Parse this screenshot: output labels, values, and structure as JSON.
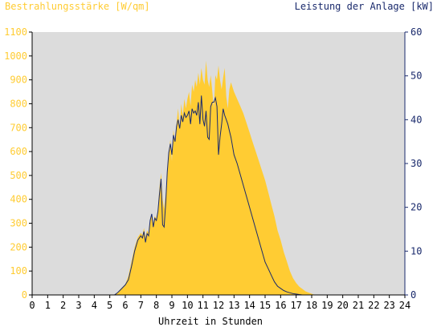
{
  "chart_data": {
    "type": "area",
    "left_axis_title": "Bestrahlungsstärke [W/qm]",
    "right_axis_title": "Leistung der Anlage [kW]",
    "xlabel": "Uhrzeit in Stunden",
    "xlim": [
      0,
      24
    ],
    "x_ticks": [
      "0",
      "1",
      "2",
      "3",
      "4",
      "5",
      "6",
      "7",
      "8",
      "9",
      "10",
      "11",
      "12",
      "13",
      "14",
      "15",
      "16",
      "17",
      "18",
      "19",
      "20",
      "21",
      "22",
      "23",
      "24"
    ],
    "y_left_lim": [
      0,
      1100
    ],
    "y_left_ticks": [
      "0",
      "100",
      "200",
      "300",
      "400",
      "500",
      "600",
      "700",
      "800",
      "900",
      "1000",
      "1100"
    ],
    "y_right_lim": [
      0,
      60
    ],
    "y_right_ticks": [
      "0",
      "10",
      "20",
      "30",
      "40",
      "50",
      "60"
    ],
    "grid": false,
    "colors": {
      "plot_bg": "#dcdcdc",
      "irradiance": "#ffcc33",
      "power": "#1a2a6c",
      "left_axis_text": "#ffcc33",
      "right_axis_text": "#1a2a6c"
    },
    "series": [
      {
        "axis": "left",
        "style": "area",
        "x": [
          0,
          5.3,
          5.5,
          5.7,
          6.0,
          6.2,
          6.4,
          6.6,
          6.8,
          7.0,
          7.1,
          7.2,
          7.3,
          7.4,
          7.5,
          7.6,
          7.7,
          7.8,
          7.9,
          8.0,
          8.1,
          8.2,
          8.3,
          8.4,
          8.5,
          8.6,
          8.7,
          8.8,
          8.9,
          9.0,
          9.1,
          9.2,
          9.3,
          9.4,
          9.5,
          9.6,
          9.7,
          9.8,
          9.9,
          10.0,
          10.1,
          10.2,
          10.3,
          10.4,
          10.5,
          10.6,
          10.7,
          10.8,
          10.9,
          11.0,
          11.1,
          11.2,
          11.3,
          11.4,
          11.5,
          11.6,
          11.7,
          11.8,
          11.9,
          12.0,
          12.1,
          12.2,
          12.3,
          12.4,
          12.5,
          12.6,
          12.7,
          12.8,
          12.9,
          13.0,
          13.2,
          13.4,
          13.6,
          13.8,
          14.0,
          14.2,
          14.4,
          14.6,
          14.8,
          15.0,
          15.2,
          15.4,
          15.6,
          15.8,
          16.0,
          16.2,
          16.4,
          16.6,
          16.8,
          17.0,
          17.2,
          17.4,
          17.6,
          17.8,
          18.0,
          18.2,
          18.4,
          18.6,
          18.8,
          19.0,
          19.2,
          19.4,
          19.6,
          19.8,
          20.0,
          24
        ],
        "values": [
          0,
          0,
          10,
          25,
          45,
          80,
          140,
          200,
          240,
          260,
          250,
          280,
          240,
          270,
          260,
          310,
          340,
          300,
          330,
          320,
          360,
          450,
          510,
          400,
          360,
          420,
          520,
          600,
          650,
          560,
          690,
          640,
          720,
          780,
          700,
          800,
          750,
          820,
          780,
          820,
          850,
          790,
          880,
          850,
          900,
          870,
          930,
          880,
          950,
          900,
          880,
          980,
          900,
          870,
          920,
          850,
          780,
          920,
          900,
          960,
          900,
          860,
          910,
          950,
          830,
          780,
          860,
          890,
          870,
          850,
          820,
          790,
          760,
          720,
          680,
          640,
          600,
          560,
          520,
          480,
          430,
          380,
          330,
          270,
          230,
          180,
          140,
          100,
          70,
          50,
          35,
          25,
          15,
          10,
          5,
          0,
          0,
          0,
          0,
          0,
          0,
          0,
          0,
          0,
          0,
          0
        ]
      },
      {
        "axis": "right",
        "style": "line",
        "x": [
          0,
          5.3,
          5.5,
          5.7,
          6.0,
          6.2,
          6.4,
          6.6,
          6.8,
          7.0,
          7.1,
          7.2,
          7.3,
          7.4,
          7.5,
          7.6,
          7.7,
          7.8,
          7.9,
          8.0,
          8.1,
          8.2,
          8.3,
          8.4,
          8.5,
          8.6,
          8.7,
          8.8,
          8.9,
          9.0,
          9.1,
          9.2,
          9.3,
          9.4,
          9.5,
          9.6,
          9.7,
          9.8,
          9.9,
          10.0,
          10.1,
          10.2,
          10.3,
          10.4,
          10.5,
          10.6,
          10.7,
          10.8,
          10.9,
          11.0,
          11.1,
          11.2,
          11.3,
          11.4,
          11.5,
          11.6,
          11.7,
          11.8,
          11.9,
          12.0,
          12.1,
          12.2,
          12.3,
          12.4,
          12.5,
          12.6,
          12.7,
          12.8,
          12.9,
          13.0,
          13.2,
          13.4,
          13.6,
          13.8,
          14.0,
          14.2,
          14.4,
          14.6,
          14.8,
          15.0,
          15.2,
          15.4,
          15.6,
          15.8,
          16.0,
          16.2,
          16.4,
          16.6,
          16.8,
          17.0,
          17.2,
          17.4,
          17.6,
          17.8,
          18.0,
          18.2,
          18.4,
          18.6,
          18.8,
          19.0,
          19.2,
          19.4,
          19.6,
          19.8,
          20.0,
          24
        ],
        "values": [
          0,
          0,
          0.5,
          1.2,
          2.3,
          3.5,
          6.5,
          10.0,
          12.5,
          13.5,
          13.0,
          14.5,
          12.0,
          14.0,
          13.5,
          17.0,
          18.5,
          15.5,
          17.5,
          17.0,
          19.0,
          23.0,
          26.5,
          16.0,
          15.5,
          21.0,
          28.0,
          32.5,
          34.5,
          32.0,
          36.5,
          35.0,
          38.5,
          40.0,
          38.0,
          41.0,
          39.5,
          41.5,
          40.5,
          41.0,
          42.0,
          39.0,
          42.5,
          41.5,
          42.0,
          41.0,
          44.0,
          39.0,
          45.5,
          40.0,
          38.5,
          42.0,
          36.0,
          35.5,
          43.0,
          44.0,
          44.0,
          45.0,
          43.0,
          32.0,
          36.0,
          39.0,
          42.5,
          41.0,
          40.0,
          39.0,
          37.5,
          36.0,
          34.0,
          32.0,
          30.0,
          27.5,
          25.0,
          22.5,
          20.0,
          17.5,
          15.0,
          12.5,
          10.0,
          7.5,
          6.0,
          4.5,
          3.0,
          2.0,
          1.5,
          1.0,
          0.7,
          0.5,
          0.3,
          0.2,
          0.1,
          0,
          0,
          0,
          0,
          0,
          0,
          0,
          0,
          0,
          0,
          0,
          0,
          0,
          0,
          0
        ]
      }
    ]
  }
}
